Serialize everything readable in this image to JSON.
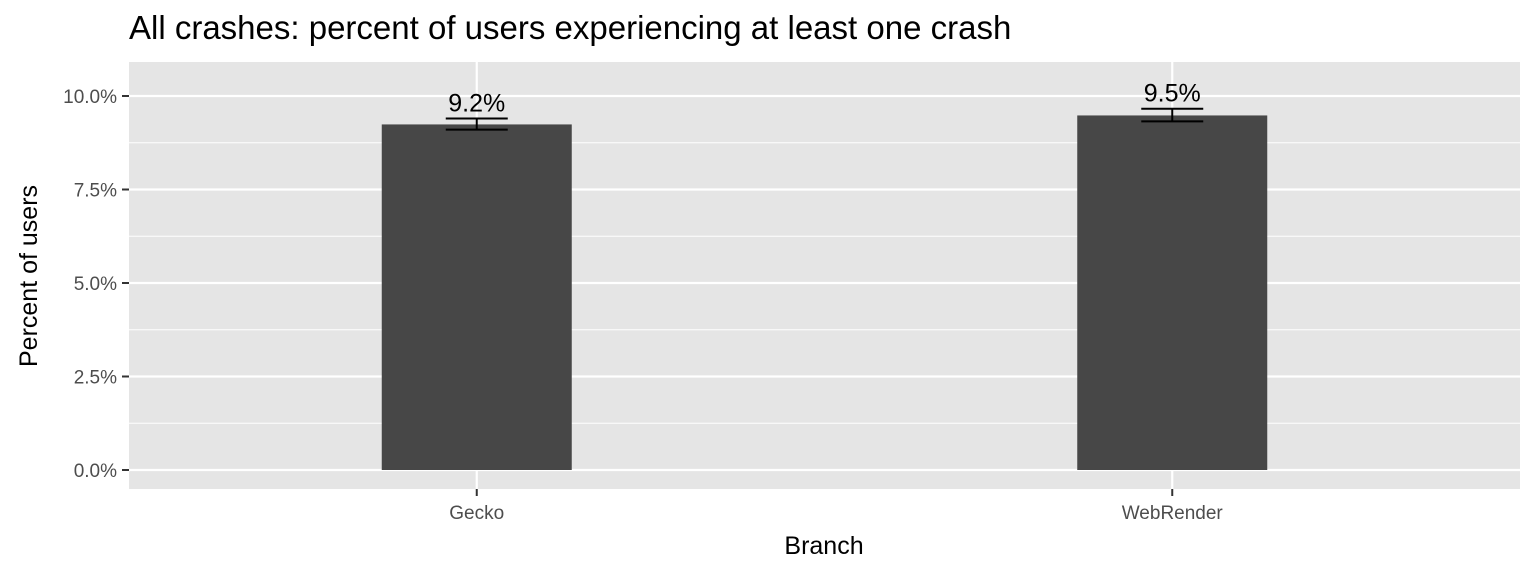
{
  "chart_data": {
    "type": "bar",
    "title": "All crashes: percent of users experiencing at least one crash",
    "xlabel": "Branch",
    "ylabel": "Percent of users",
    "categories": [
      "Gecko",
      "WebRender"
    ],
    "values": [
      9.24,
      9.48
    ],
    "data_labels": [
      "9.2%",
      "9.5%"
    ],
    "error_bars": [
      {
        "low": 9.1,
        "high": 9.4
      },
      {
        "low": 9.32,
        "high": 9.66
      }
    ],
    "ylim": [
      0,
      10.9
    ],
    "yticks": [
      0,
      2.5,
      5.0,
      7.5,
      10.0
    ],
    "ytick_labels": [
      "0.0%",
      "2.5%",
      "5.0%",
      "7.5%",
      "10.0%"
    ],
    "grid": true,
    "legend": "none",
    "colors": {
      "bar": "#474747",
      "panel": "#e5e5e5",
      "grid": "#ffffff",
      "text": "#000000",
      "tick_text": "#4d4d4d",
      "tick_mark": "#333333"
    }
  }
}
